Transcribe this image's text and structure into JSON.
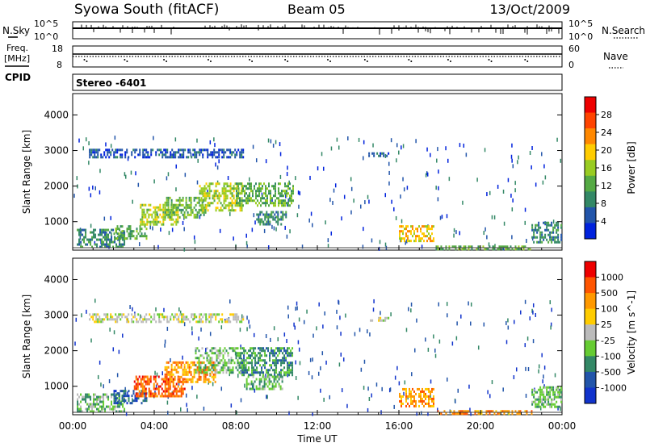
{
  "header": {
    "station": "Syowa South (fitACF)",
    "beam": "Beam 05",
    "date": "13/Oct/2009"
  },
  "left_labels": {
    "nsky": "N.Sky",
    "freq_line1": "Freq.",
    "freq_line2": "[MHz]",
    "cpid": "CPID"
  },
  "right_labels": {
    "nsearch": "N.Search",
    "nave": "Nave"
  },
  "cpid_text": "Stereo -6401",
  "top_panel_ticks": {
    "left": [
      "10^5",
      "10^0"
    ],
    "right": [
      "10^5",
      "10^0"
    ]
  },
  "freq_panel_ticks": {
    "left": [
      "18",
      "8"
    ],
    "right": [
      "60",
      "0"
    ]
  },
  "chart_data": [
    {
      "type": "heatmap",
      "panel": "power",
      "ylabel": "Slant Range [km]",
      "yticks": [
        "4000",
        "3000",
        "2000",
        "1000"
      ],
      "ylim": [
        200,
        4600
      ],
      "xlim": [
        0,
        24
      ],
      "colorbar_label": "Power [dB]",
      "colorbar_ticks": [
        "28",
        "24",
        "20",
        "16",
        "12",
        "8",
        "4"
      ],
      "colorbar_colors": [
        "#0022dd",
        "#2255aa",
        "#338866",
        "#55aa44",
        "#99cc22",
        "#ffcc00",
        "#ff8800",
        "#ff4400",
        "#ee0000"
      ],
      "regions": [
        {
          "t0": 0.2,
          "t1": 2.5,
          "r0": 300,
          "r1": 800,
          "level": 2
        },
        {
          "t0": 2.0,
          "t1": 3.6,
          "r0": 550,
          "r1": 900,
          "level": 3
        },
        {
          "t0": 3.3,
          "t1": 5.2,
          "r0": 900,
          "r1": 1500,
          "level": 4
        },
        {
          "t0": 4.5,
          "t1": 6.5,
          "r0": 1150,
          "r1": 1700,
          "level": 3
        },
        {
          "t0": 6.2,
          "t1": 8.3,
          "r0": 1350,
          "r1": 2100,
          "level": 4
        },
        {
          "t0": 8.0,
          "t1": 10.8,
          "r0": 1450,
          "r1": 2100,
          "level": 3
        },
        {
          "t0": 9.0,
          "t1": 10.5,
          "r0": 900,
          "r1": 1300,
          "level": 2
        },
        {
          "t0": 0.8,
          "t1": 8.4,
          "r0": 2800,
          "r1": 3050,
          "level": 1
        },
        {
          "t0": 14.5,
          "t1": 15.5,
          "r0": 2850,
          "r1": 2950,
          "level": 1
        },
        {
          "t0": 16.0,
          "t1": 17.7,
          "r0": 450,
          "r1": 900,
          "level": 5
        },
        {
          "t0": 17.8,
          "t1": 22.5,
          "r0": 220,
          "r1": 330,
          "level": 3
        },
        {
          "t0": 22.5,
          "t1": 24.0,
          "r0": 400,
          "r1": 1000,
          "level": 2
        }
      ]
    },
    {
      "type": "heatmap",
      "panel": "velocity",
      "xlabel": "Time UT",
      "ylabel": "Slant Range [km]",
      "yticks": [
        "4000",
        "3000",
        "2000",
        "1000"
      ],
      "xticks": [
        "00:00",
        "04:00",
        "08:00",
        "12:00",
        "16:00",
        "20:00",
        "00:00"
      ],
      "ylim": [
        200,
        4600
      ],
      "xlim": [
        0,
        24
      ],
      "colorbar_label": "Velocity [m s^-1]",
      "colorbar_ticks": [
        "1000",
        "500",
        "100",
        "25",
        "-25",
        "-100",
        "-500",
        "-1000"
      ],
      "colorbar_colors": [
        "#1133cc",
        "#2255aa",
        "#338866",
        "#66cc33",
        "#bbbbbb",
        "#ffcc00",
        "#ff9900",
        "#ff5500",
        "#ee0000"
      ],
      "regions": [
        {
          "t0": 0.2,
          "t1": 2.5,
          "r0": 300,
          "r1": 800,
          "level": 3
        },
        {
          "t0": 2.0,
          "t1": 3.6,
          "r0": 550,
          "r1": 900,
          "level": 1
        },
        {
          "t0": 3.0,
          "t1": 5.5,
          "r0": 700,
          "r1": 1300,
          "level": 7
        },
        {
          "t0": 4.5,
          "t1": 7.0,
          "r0": 1100,
          "r1": 1700,
          "level": 6
        },
        {
          "t0": 6.0,
          "t1": 8.5,
          "r0": 1400,
          "r1": 2100,
          "level": 3
        },
        {
          "t0": 8.2,
          "t1": 10.8,
          "r0": 1350,
          "r1": 2100,
          "level": 2
        },
        {
          "t0": 8.5,
          "t1": 10.3,
          "r0": 950,
          "r1": 1300,
          "level": 3
        },
        {
          "t0": 0.8,
          "t1": 8.4,
          "r0": 2800,
          "r1": 3050,
          "level": 4
        },
        {
          "t0": 14.5,
          "t1": 15.5,
          "r0": 2850,
          "r1": 2950,
          "level": 4
        },
        {
          "t0": 16.0,
          "t1": 17.7,
          "r0": 450,
          "r1": 950,
          "level": 6
        },
        {
          "t0": 17.8,
          "t1": 22.5,
          "r0": 220,
          "r1": 330,
          "level": 6
        },
        {
          "t0": 22.5,
          "t1": 24.0,
          "r0": 400,
          "r1": 1000,
          "level": 3
        }
      ]
    }
  ]
}
